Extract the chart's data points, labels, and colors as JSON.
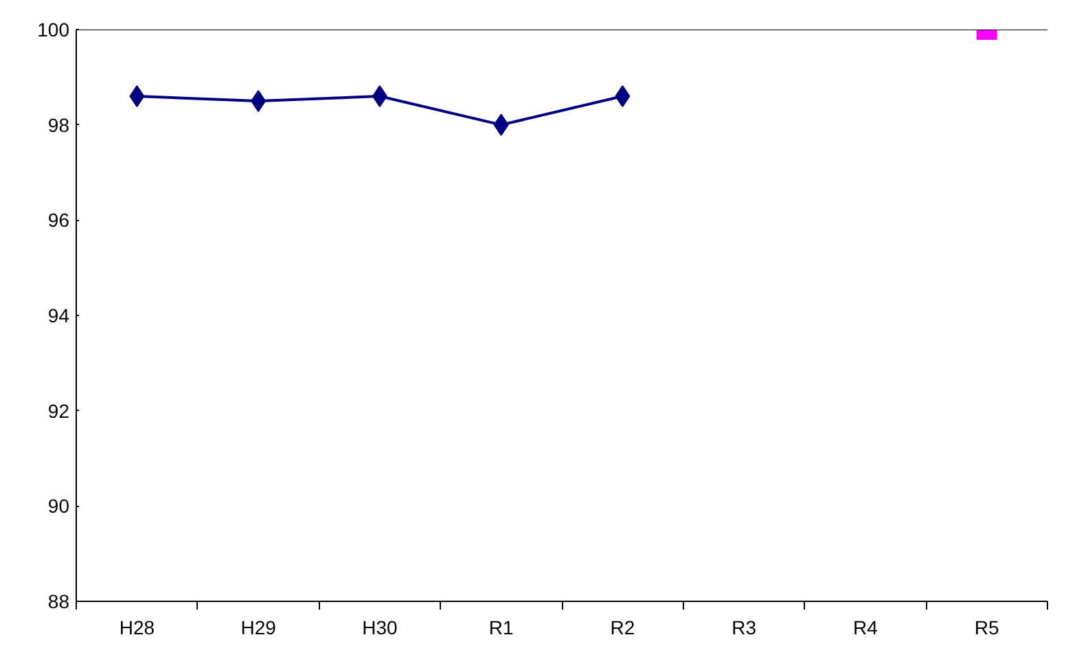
{
  "chart_data": {
    "type": "line",
    "categories": [
      "H28",
      "H29",
      "H30",
      "R1",
      "R2",
      "R3",
      "R4",
      "R5"
    ],
    "series": [
      {
        "color": "#000080",
        "marker": "diamond",
        "values": [
          98.6,
          98.5,
          98.6,
          98.0,
          98.6,
          null,
          null,
          null
        ]
      },
      {
        "type": "scatter",
        "color": "#ff00ff",
        "marker": "square",
        "values": [
          null,
          null,
          null,
          null,
          null,
          null,
          null,
          100
        ]
      }
    ],
    "ylim": [
      88,
      100
    ],
    "yticks": [
      88,
      90,
      92,
      94,
      96,
      98,
      100
    ],
    "grid": false
  }
}
